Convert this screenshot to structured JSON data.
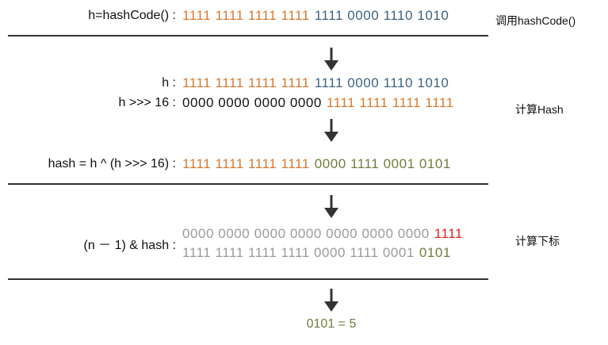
{
  "steps": [
    {
      "label": "h=hashCode() :",
      "bits": [
        [
          "1111 1111 1111 1111",
          "1111 0000 1110 1010"
        ]
      ],
      "note": "调用hashCode()"
    },
    {
      "label": "h :",
      "bits": [
        [
          "1111 1111 1111 1111",
          "1111 0000 1110 1010"
        ]
      ]
    },
    {
      "label": "h >>> 16 :",
      "bits": [
        [
          "0000 0000 0000 0000",
          "1111 1111 1111 1111"
        ]
      ],
      "note": "计算Hash"
    },
    {
      "label": "hash = h ^ (h >>> 16) :",
      "bits": [
        [
          "1111 1111 1111 1111",
          "0000 1111 0001 0101"
        ]
      ]
    },
    {
      "label": "(n － 1) & hash :",
      "bits": [
        [
          "0000 0000 0000 0000 0000 0000 0000",
          "1111"
        ],
        [
          "1111 1111 1111 1111 0000 1111 0001",
          "0101"
        ]
      ],
      "note": "计算下标"
    }
  ],
  "result": "0101 = 5"
}
